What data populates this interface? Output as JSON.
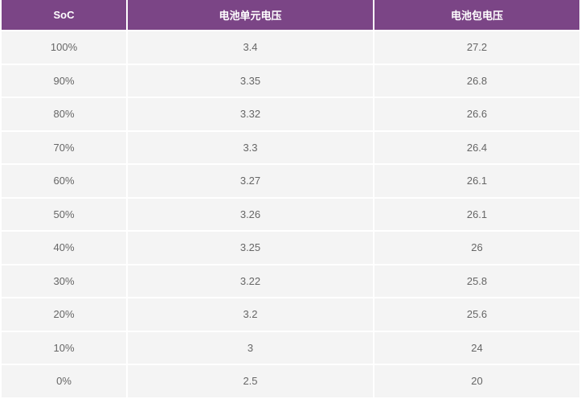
{
  "colors": {
    "header_bg": "#7b4586",
    "row_bg": "#f4f4f4"
  },
  "headers": [
    "SoC",
    "电池单元电压",
    "电池包电压"
  ],
  "rows": [
    [
      "100%",
      "3.4",
      "27.2"
    ],
    [
      "90%",
      "3.35",
      "26.8"
    ],
    [
      "80%",
      "3.32",
      "26.6"
    ],
    [
      "70%",
      "3.3",
      "26.4"
    ],
    [
      "60%",
      "3.27",
      "26.1"
    ],
    [
      "50%",
      "3.26",
      "26.1"
    ],
    [
      "40%",
      "3.25",
      "26"
    ],
    [
      "30%",
      "3.22",
      "25.8"
    ],
    [
      "20%",
      "3.2",
      "25.6"
    ],
    [
      "10%",
      "3",
      "24"
    ],
    [
      "0%",
      "2.5",
      "20"
    ]
  ]
}
